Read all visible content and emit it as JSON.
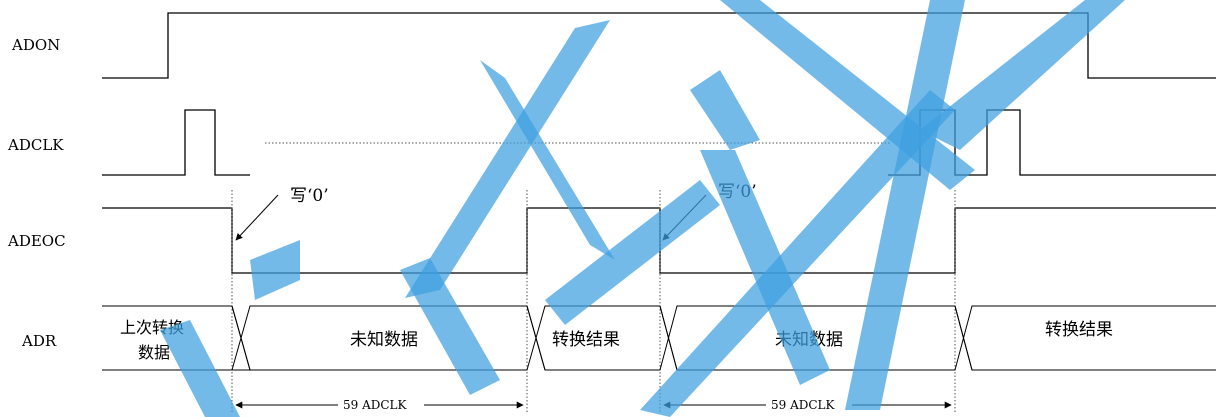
{
  "signals": {
    "adon": "ADON",
    "adclk": "ADCLK",
    "adeoc": "ADEOC",
    "adr": "ADR"
  },
  "annotations": {
    "write_zero_1": "写‘0’",
    "write_zero_2": "写‘0’"
  },
  "adr_segments": {
    "previous_line1": "上次转换",
    "previous_line2": "数据",
    "unknown_1": "未知数据",
    "result_1": "转换结果",
    "unknown_2": "未知数据",
    "result_2": "转换结果"
  },
  "dimensions": {
    "span_1": "59 ADCLK",
    "span_2": "59 ADCLK"
  },
  "colors": {
    "watermark": "#3f9fe0",
    "line": "#000000"
  }
}
